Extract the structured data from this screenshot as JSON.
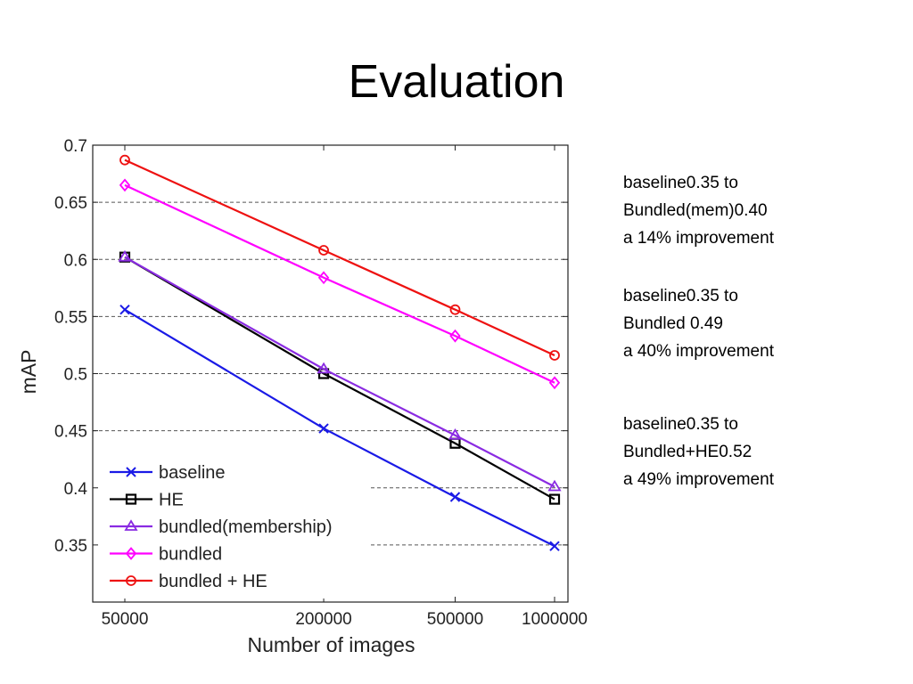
{
  "slide": {
    "title": "Evaluation"
  },
  "notes": [
    {
      "line1": "baseline0.35 to",
      "line2": "Bundled(mem)0.40",
      "line3": "a 14% improvement"
    },
    {
      "line1": "baseline0.35 to",
      "line2": "Bundled 0.49",
      "line3": "a 40% improvement"
    },
    {
      "line1": "baseline0.35 to",
      "line2": "Bundled+HE0.52",
      "line3": "a 49% improvement"
    }
  ],
  "chart_data": {
    "type": "line",
    "xlabel": "Number of images",
    "ylabel": "mAP",
    "x_scale": "log",
    "x": [
      50000,
      200000,
      500000,
      1000000
    ],
    "x_ticks": [
      "50000",
      "200000",
      "500000",
      "1000000"
    ],
    "ylim": [
      0.3,
      0.7
    ],
    "y_ticks": [
      "0.35",
      "0.4",
      "0.45",
      "0.5",
      "0.55",
      "0.6",
      "0.65",
      "0.7"
    ],
    "grid": "dashed horizontal",
    "legend_position": "bottom-left",
    "series": [
      {
        "name": "baseline",
        "color": "#1a1ae6",
        "marker": "x",
        "values": [
          0.556,
          0.452,
          0.392,
          0.349
        ]
      },
      {
        "name": "HE",
        "color": "#000000",
        "marker": "square",
        "values": [
          0.602,
          0.5,
          0.439,
          0.39
        ]
      },
      {
        "name": "bundled(membership)",
        "color": "#8a2be2",
        "marker": "triangle",
        "values": [
          0.602,
          0.504,
          0.446,
          0.401
        ]
      },
      {
        "name": "bundled",
        "color": "#ff00ff",
        "marker": "diamond",
        "values": [
          0.665,
          0.584,
          0.533,
          0.492
        ]
      },
      {
        "name": "bundled + HE",
        "color": "#ee1111",
        "marker": "circle",
        "values": [
          0.687,
          0.608,
          0.556,
          0.516
        ]
      }
    ]
  }
}
